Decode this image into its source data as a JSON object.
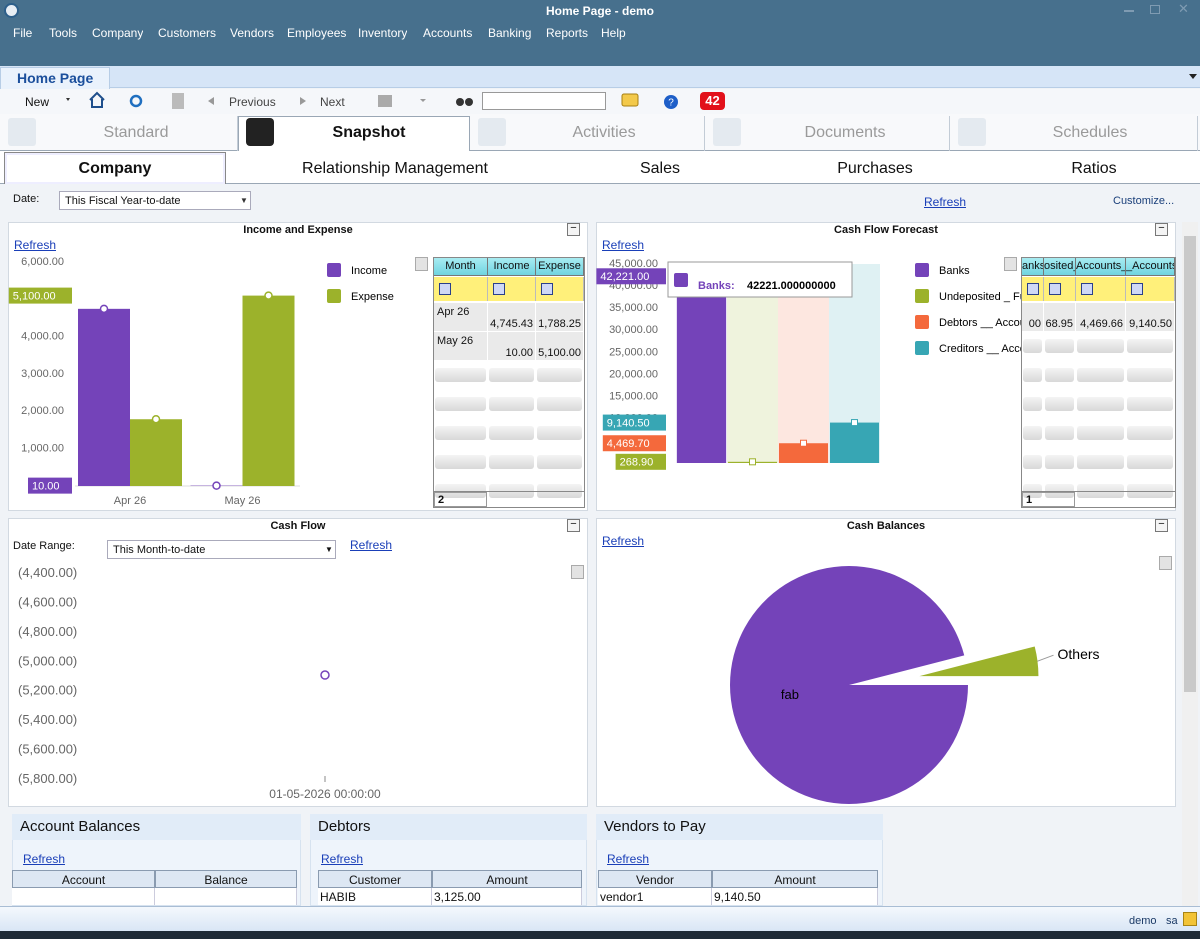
{
  "window": {
    "title": "Home Page - demo"
  },
  "menu": [
    "File",
    "Tools",
    "Company",
    "Customers",
    "Vendors",
    "Employees",
    "Inventory",
    "Accounts",
    "Banking",
    "Reports",
    "Help"
  ],
  "doc_tab": "Home Page",
  "toolbar": {
    "new": "New",
    "previous": "Previous",
    "next": "Next",
    "badge": "42"
  },
  "main_tabs": [
    "Standard",
    "Snapshot",
    "Activities",
    "Documents",
    "Schedules"
  ],
  "sub_tabs": [
    "Company",
    "Relationship Management",
    "Sales",
    "Purchases",
    "Ratios"
  ],
  "filter": {
    "label": "Date:",
    "value": "This Fiscal Year-to-date",
    "refresh": "Refresh",
    "customize": "Customize..."
  },
  "chart_data": [
    {
      "type": "bar",
      "title": "Income and Expense",
      "refresh": "Refresh",
      "categories": [
        "Apr 26",
        "May 26"
      ],
      "series": [
        {
          "name": "Income",
          "color": "#7443b9",
          "values": [
            4745.43,
            10
          ]
        },
        {
          "name": "Expense",
          "color": "#9cb22b",
          "values": [
            1788.25,
            5100
          ]
        }
      ],
      "ylim": [
        0,
        6000
      ],
      "yticks": [
        {
          "value": 1000,
          "label": "1,000.00"
        },
        {
          "value": 2000,
          "label": "2,000.00"
        },
        {
          "value": 3000,
          "label": "3,000.00"
        },
        {
          "value": 4000,
          "label": "4,000.00"
        },
        {
          "value": 5000,
          "label": "5,000.00"
        },
        {
          "value": 6000,
          "label": "6,000.00"
        }
      ],
      "axis_markers": [
        {
          "value": 5100,
          "label": "5,100.00",
          "color": "#9cb22b"
        },
        {
          "value": 10,
          "label": "10.00",
          "color": "#7443b9"
        }
      ]
    },
    {
      "type": "bar",
      "title": "Cash Flow Forecast",
      "refresh": "Refresh",
      "categories": [
        null
      ],
      "series": [
        {
          "name": "Banks",
          "color": "#7443b9",
          "values": [
            42221
          ]
        },
        {
          "name": "Undeposited _ Fu",
          "color": "#9cb22b",
          "values": [
            268.9
          ]
        },
        {
          "name": "Debtors __ Accou",
          "color": "#f4693c",
          "values": [
            4469.7
          ]
        },
        {
          "name": "Creditors __ Acco",
          "color": "#37a6b4",
          "values": [
            9140.5
          ]
        }
      ],
      "ylim": [
        0,
        45000
      ],
      "yticks": [
        {
          "value": 5000,
          "label": "5,000.00"
        },
        {
          "value": 10000,
          "label": "10,000.00"
        },
        {
          "value": 15000,
          "label": "15,000.00"
        },
        {
          "value": 20000,
          "label": "20,000.00"
        },
        {
          "value": 25000,
          "label": "25,000.00"
        },
        {
          "value": 30000,
          "label": "30,000.00"
        },
        {
          "value": 35000,
          "label": "35,000.00"
        },
        {
          "value": 40000,
          "label": "40,000.00"
        },
        {
          "value": 45000,
          "label": "45,000.00"
        }
      ],
      "axis_markers": [
        {
          "value": 42221,
          "label": "42,221.00",
          "color": "#7443b9"
        },
        {
          "value": 9140.5,
          "label": "9,140.50",
          "color": "#37a6b4"
        },
        {
          "value": 4469.7,
          "label": "4,469.70",
          "color": "#f4693c"
        },
        {
          "value": 268.9,
          "label": "268.90",
          "color": "#9cb22b"
        }
      ],
      "tooltip": {
        "label": "Banks:",
        "text": "42221.000000000",
        "color": "#7443b9"
      }
    },
    {
      "type": "line",
      "title": "Cash Flow",
      "date_range_label": "Date Range:",
      "date_range": "This Month-to-date",
      "refresh": "Refresh",
      "categories": [
        "01-05-2026 00:00:00"
      ],
      "values": [
        -5090
      ],
      "color": "#7443b9",
      "ylim": [
        -5900,
        -4300
      ],
      "yticks": [
        {
          "value": -4400,
          "label": "(4,400.00)"
        },
        {
          "value": -4600,
          "label": "(4,600.00)"
        },
        {
          "value": -4800,
          "label": "(4,800.00)"
        },
        {
          "value": -5000,
          "label": "(5,000.00)"
        },
        {
          "value": -5200,
          "label": "(5,200.00)"
        },
        {
          "value": -5400,
          "label": "(5,400.00)"
        },
        {
          "value": -5600,
          "label": "(5,600.00)"
        },
        {
          "value": -5800,
          "label": "(5,800.00)"
        }
      ]
    },
    {
      "type": "pie",
      "title": "Cash Balances",
      "refresh": "Refresh",
      "categories": [
        "fab",
        "Others"
      ],
      "values": [
        96,
        4
      ],
      "colors": [
        "#7443b9",
        "#9cb22b"
      ]
    }
  ],
  "grids": [
    {
      "columns": [
        "Month",
        "Income",
        "Expense"
      ],
      "rows": [
        [
          "Apr 26",
          "4,745.43",
          "1,788.25"
        ],
        [
          "May 26",
          "10.00",
          "5,100.00"
        ]
      ],
      "footer": "2"
    },
    {
      "columns": [
        "anks",
        "osited_",
        "Accounts_R",
        "_Accounts"
      ],
      "rows": [
        [
          "00",
          "68.95",
          "4,469.66",
          "9,140.50"
        ]
      ],
      "footer": "1"
    }
  ],
  "bottom_panels": [
    {
      "title": "Account Balances",
      "refresh": "Refresh",
      "columns": [
        "Account",
        "Balance"
      ],
      "rows": []
    },
    {
      "title": "Debtors",
      "refresh": "Refresh",
      "columns": [
        "Customer",
        "Amount"
      ],
      "rows": [
        [
          "HABIB",
          "3,125.00"
        ]
      ]
    },
    {
      "title": "Vendors to Pay",
      "refresh": "Refresh",
      "columns": [
        "Vendor",
        "Amount"
      ],
      "rows": [
        [
          "vendor1",
          "9,140.50"
        ]
      ]
    }
  ],
  "status": {
    "company": "demo",
    "user": "sa"
  }
}
